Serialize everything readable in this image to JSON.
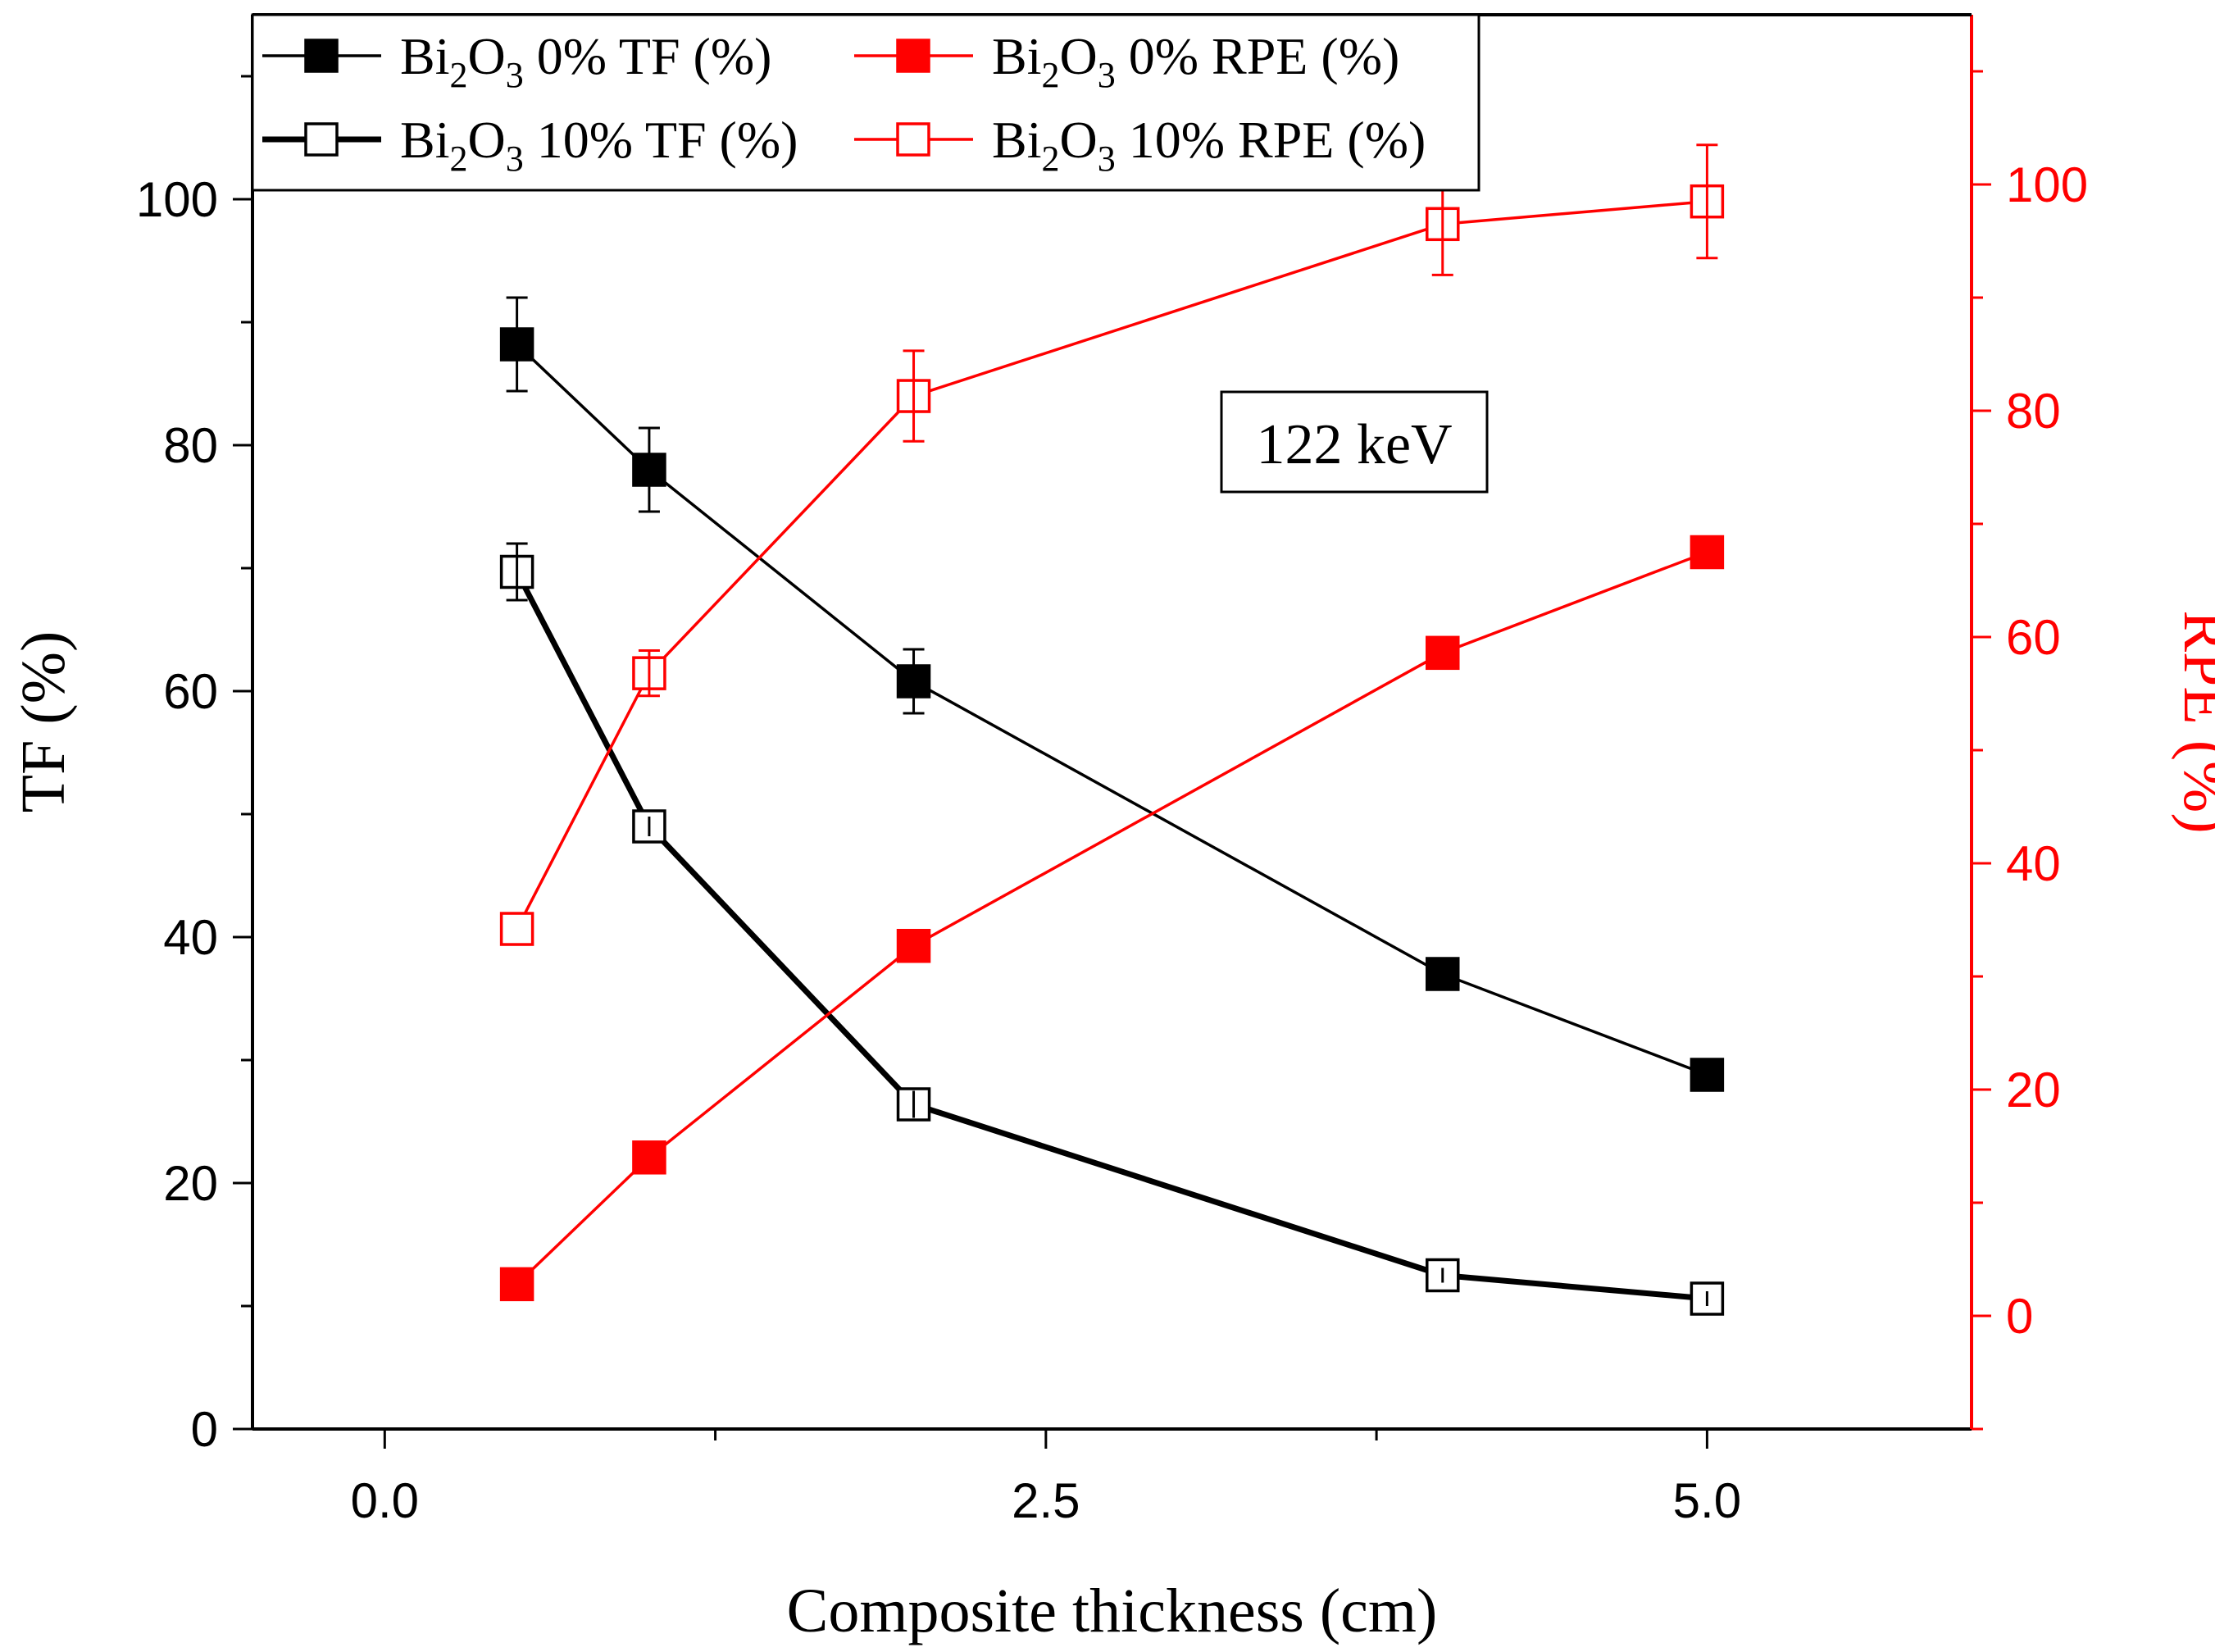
{
  "chart_data": {
    "type": "line",
    "annotation": "122 keV",
    "colors": {
      "left_axis": "#000000",
      "right_axis": "#ff0000"
    },
    "x_axis": {
      "label": "Composite thickness (cm)",
      "range": [
        -0.5,
        6.0
      ],
      "ticks": [
        0.0,
        2.5,
        5.0
      ],
      "tick_labels": [
        "0.0",
        "2.5",
        "5.0"
      ],
      "minor_ticks": [
        1.25,
        3.75
      ]
    },
    "y_left": {
      "label": "TF (%)",
      "range": [
        0,
        115
      ],
      "ticks": [
        0,
        20,
        40,
        60,
        80,
        100
      ],
      "tick_labels": [
        "0",
        "20",
        "40",
        "60",
        "80",
        "100"
      ],
      "minor_ticks": [
        10,
        30,
        50,
        70,
        90,
        110
      ]
    },
    "y_right": {
      "label": "RPE (%)",
      "range": [
        -10,
        115
      ],
      "ticks": [
        0,
        20,
        40,
        60,
        80,
        100
      ],
      "tick_labels": [
        "0",
        "20",
        "40",
        "60",
        "80",
        "100"
      ],
      "minor_ticks": [
        -10,
        10,
        30,
        50,
        70,
        90,
        110
      ]
    },
    "series": [
      {
        "id": "tf0",
        "legend_base": "Bi",
        "legend_sub1": "2",
        "legend_mid": "O",
        "legend_sub2": "3",
        "legend_suffix": " 0% TF (%)",
        "axis": "left",
        "color": "#000000",
        "marker": "filled-square",
        "line": "thin",
        "x": [
          0.5,
          1.0,
          2.0,
          4.0,
          5.0
        ],
        "y": [
          88.2,
          78.0,
          60.8,
          37.0,
          28.8
        ],
        "err": [
          3.8,
          3.4,
          2.6,
          0.8,
          0.5
        ]
      },
      {
        "id": "tf10",
        "legend_base": "Bi",
        "legend_sub1": "2",
        "legend_mid": "O",
        "legend_sub2": "3",
        "legend_suffix": " 10% TF (%)",
        "axis": "left",
        "color": "#000000",
        "marker": "open-square",
        "line": "thick",
        "x": [
          0.5,
          1.0,
          2.0,
          4.0,
          5.0
        ],
        "y": [
          69.7,
          49.0,
          26.4,
          12.5,
          10.6
        ],
        "err": [
          2.3,
          0.8,
          1.1,
          0.6,
          0.6
        ]
      },
      {
        "id": "rpe0",
        "legend_base": "Bi",
        "legend_sub1": "2",
        "legend_mid": "O",
        "legend_sub2": "3",
        "legend_suffix": " 0% RPE (%)",
        "axis": "right",
        "color": "#ff0000",
        "marker": "filled-square",
        "line": "thin",
        "x": [
          0.5,
          1.0,
          2.0,
          4.0,
          5.0
        ],
        "y": [
          2.8,
          14.0,
          32.7,
          58.6,
          67.5
        ],
        "err": [
          0,
          0,
          0,
          0,
          0
        ]
      },
      {
        "id": "rpe10",
        "legend_base": "Bi",
        "legend_sub1": "2",
        "legend_mid": "O",
        "legend_sub2": "3",
        "legend_suffix": " 10% RPE (%)",
        "axis": "right",
        "color": "#ff0000",
        "marker": "open-square",
        "line": "thin",
        "x": [
          0.5,
          1.0,
          2.0,
          4.0,
          5.0
        ],
        "y": [
          34.2,
          56.8,
          81.3,
          96.5,
          98.5
        ],
        "err": [
          0,
          2.0,
          4.0,
          4.5,
          5.0
        ]
      }
    ]
  }
}
